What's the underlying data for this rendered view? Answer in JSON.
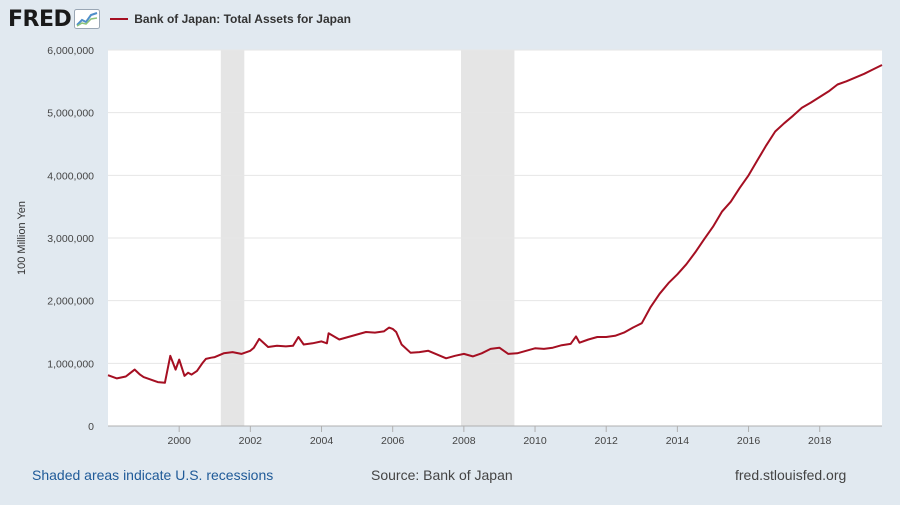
{
  "header": {
    "logo_text": "FRED",
    "logo_icon": "fred-chart-icon",
    "legend_label": "Bank of Japan: Total Assets for Japan"
  },
  "footer": {
    "recession_note": "Shaded areas indicate U.S. recessions",
    "source": "Source: Bank of Japan",
    "site": "fred.stlouisfed.org"
  },
  "colors": {
    "line": "#a50f22",
    "background": "#e1e9f0",
    "plot": "#ffffff",
    "recession": "#e5e5e5",
    "link": "#1f5a98"
  },
  "chart_data": {
    "type": "line",
    "title": "",
    "xlabel": "",
    "ylabel": "100 Million Yen",
    "ylim": [
      0,
      6000000
    ],
    "xlim": [
      1998.0,
      2019.75
    ],
    "yticks": [
      0,
      1000000,
      2000000,
      3000000,
      4000000,
      5000000,
      6000000
    ],
    "ytick_labels": [
      "0",
      "1,000,000",
      "2,000,000",
      "3,000,000",
      "4,000,000",
      "5,000,000",
      "6,000,000"
    ],
    "xticks": [
      2000,
      2002,
      2004,
      2006,
      2008,
      2010,
      2012,
      2014,
      2016,
      2018
    ],
    "xtick_labels": [
      "2000",
      "2002",
      "2004",
      "2006",
      "2008",
      "2010",
      "2012",
      "2014",
      "2016",
      "2018"
    ],
    "grid": "horizontal",
    "recessions": [
      [
        2001.17,
        2001.83
      ],
      [
        2007.92,
        2009.42
      ]
    ],
    "series": [
      {
        "name": "Bank of Japan: Total Assets for Japan",
        "x": [
          1998.0,
          1998.25,
          1998.5,
          1998.75,
          1998.9,
          1999.0,
          1999.2,
          1999.4,
          1999.6,
          1999.75,
          1999.9,
          2000.0,
          2000.15,
          2000.25,
          2000.35,
          2000.5,
          2000.65,
          2000.75,
          2000.9,
          2001.0,
          2001.25,
          2001.5,
          2001.75,
          2002.0,
          2002.1,
          2002.25,
          2002.5,
          2002.75,
          2003.0,
          2003.2,
          2003.35,
          2003.5,
          2003.75,
          2004.0,
          2004.15,
          2004.2,
          2004.5,
          2004.75,
          2005.0,
          2005.25,
          2005.5,
          2005.75,
          2005.9,
          2006.0,
          2006.1,
          2006.25,
          2006.5,
          2006.75,
          2007.0,
          2007.25,
          2007.5,
          2007.75,
          2008.0,
          2008.25,
          2008.5,
          2008.75,
          2009.0,
          2009.25,
          2009.5,
          2009.75,
          2010.0,
          2010.25,
          2010.5,
          2010.75,
          2011.0,
          2011.15,
          2011.25,
          2011.5,
          2011.75,
          2012.0,
          2012.25,
          2012.5,
          2012.75,
          2013.0,
          2013.25,
          2013.5,
          2013.75,
          2014.0,
          2014.25,
          2014.5,
          2014.75,
          2015.0,
          2015.25,
          2015.5,
          2015.75,
          2016.0,
          2016.25,
          2016.5,
          2016.75,
          2017.0,
          2017.25,
          2017.5,
          2017.75,
          2018.0,
          2018.25,
          2018.5,
          2018.75,
          2019.0,
          2019.25,
          2019.5,
          2019.75
        ],
        "values": [
          810000,
          760000,
          790000,
          900000,
          820000,
          780000,
          740000,
          700000,
          690000,
          1120000,
          900000,
          1060000,
          800000,
          850000,
          820000,
          880000,
          1000000,
          1070000,
          1090000,
          1100000,
          1160000,
          1180000,
          1150000,
          1200000,
          1250000,
          1390000,
          1260000,
          1280000,
          1270000,
          1280000,
          1420000,
          1300000,
          1320000,
          1350000,
          1320000,
          1480000,
          1380000,
          1420000,
          1460000,
          1500000,
          1490000,
          1510000,
          1570000,
          1550000,
          1500000,
          1300000,
          1170000,
          1180000,
          1200000,
          1140000,
          1080000,
          1120000,
          1150000,
          1110000,
          1160000,
          1230000,
          1250000,
          1150000,
          1160000,
          1200000,
          1240000,
          1230000,
          1250000,
          1290000,
          1310000,
          1430000,
          1330000,
          1380000,
          1420000,
          1420000,
          1440000,
          1490000,
          1570000,
          1640000,
          1900000,
          2110000,
          2280000,
          2420000,
          2580000,
          2770000,
          2980000,
          3180000,
          3420000,
          3580000,
          3800000,
          4000000,
          4240000,
          4480000,
          4700000,
          4830000,
          4950000,
          5080000,
          5160000,
          5250000,
          5340000,
          5450000,
          5500000,
          5560000,
          5620000,
          5690000,
          5760000
        ]
      }
    ]
  }
}
